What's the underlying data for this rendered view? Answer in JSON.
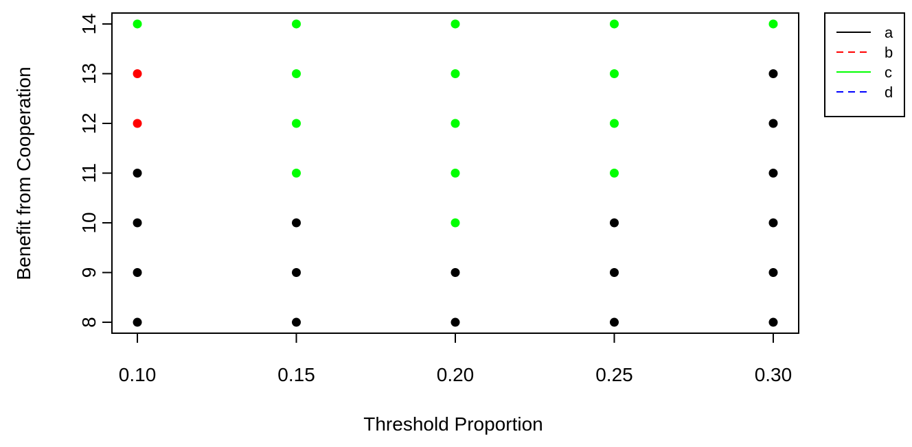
{
  "chart_data": {
    "type": "scatter",
    "xlabel": "Threshold Proportion",
    "ylabel": "Benefit from Cooperation",
    "x_ticks": [
      0.1,
      0.15,
      0.2,
      0.25,
      0.3
    ],
    "x_tick_labels": [
      "0.10",
      "0.15",
      "0.20",
      "0.25",
      "0.30"
    ],
    "y_ticks": [
      8,
      9,
      10,
      11,
      12,
      13,
      14
    ],
    "y_tick_labels": [
      "8",
      "9",
      "10",
      "11",
      "12",
      "13",
      "14"
    ],
    "xlim": [
      0.092,
      0.308
    ],
    "ylim": [
      7.78,
      14.22
    ],
    "grid": false,
    "legend_position": "outside-top-right",
    "legend": [
      {
        "label": "a",
        "color": "#000000",
        "dash": "solid"
      },
      {
        "label": "b",
        "color": "#ff0000",
        "dash": "dashed"
      },
      {
        "label": "c",
        "color": "#00ff00",
        "dash": "solid"
      },
      {
        "label": "d",
        "color": "#0000ff",
        "dash": "dashed"
      }
    ],
    "points": [
      {
        "x": 0.1,
        "y": 8,
        "group": "a"
      },
      {
        "x": 0.1,
        "y": 9,
        "group": "a"
      },
      {
        "x": 0.1,
        "y": 10,
        "group": "a"
      },
      {
        "x": 0.1,
        "y": 11,
        "group": "a"
      },
      {
        "x": 0.1,
        "y": 12,
        "group": "b"
      },
      {
        "x": 0.1,
        "y": 13,
        "group": "b"
      },
      {
        "x": 0.1,
        "y": 14,
        "group": "c"
      },
      {
        "x": 0.15,
        "y": 8,
        "group": "a"
      },
      {
        "x": 0.15,
        "y": 9,
        "group": "a"
      },
      {
        "x": 0.15,
        "y": 10,
        "group": "a"
      },
      {
        "x": 0.15,
        "y": 11,
        "group": "c"
      },
      {
        "x": 0.15,
        "y": 12,
        "group": "c"
      },
      {
        "x": 0.15,
        "y": 13,
        "group": "c"
      },
      {
        "x": 0.15,
        "y": 14,
        "group": "c"
      },
      {
        "x": 0.2,
        "y": 8,
        "group": "a"
      },
      {
        "x": 0.2,
        "y": 9,
        "group": "a"
      },
      {
        "x": 0.2,
        "y": 10,
        "group": "c"
      },
      {
        "x": 0.2,
        "y": 11,
        "group": "c"
      },
      {
        "x": 0.2,
        "y": 12,
        "group": "c"
      },
      {
        "x": 0.2,
        "y": 13,
        "group": "c"
      },
      {
        "x": 0.2,
        "y": 14,
        "group": "c"
      },
      {
        "x": 0.25,
        "y": 8,
        "group": "a"
      },
      {
        "x": 0.25,
        "y": 9,
        "group": "a"
      },
      {
        "x": 0.25,
        "y": 10,
        "group": "a"
      },
      {
        "x": 0.25,
        "y": 11,
        "group": "c"
      },
      {
        "x": 0.25,
        "y": 12,
        "group": "c"
      },
      {
        "x": 0.25,
        "y": 13,
        "group": "c"
      },
      {
        "x": 0.25,
        "y": 14,
        "group": "c"
      },
      {
        "x": 0.3,
        "y": 8,
        "group": "a"
      },
      {
        "x": 0.3,
        "y": 9,
        "group": "a"
      },
      {
        "x": 0.3,
        "y": 10,
        "group": "a"
      },
      {
        "x": 0.3,
        "y": 11,
        "group": "a"
      },
      {
        "x": 0.3,
        "y": 12,
        "group": "a"
      },
      {
        "x": 0.3,
        "y": 13,
        "group": "a"
      },
      {
        "x": 0.3,
        "y": 14,
        "group": "c"
      }
    ]
  }
}
